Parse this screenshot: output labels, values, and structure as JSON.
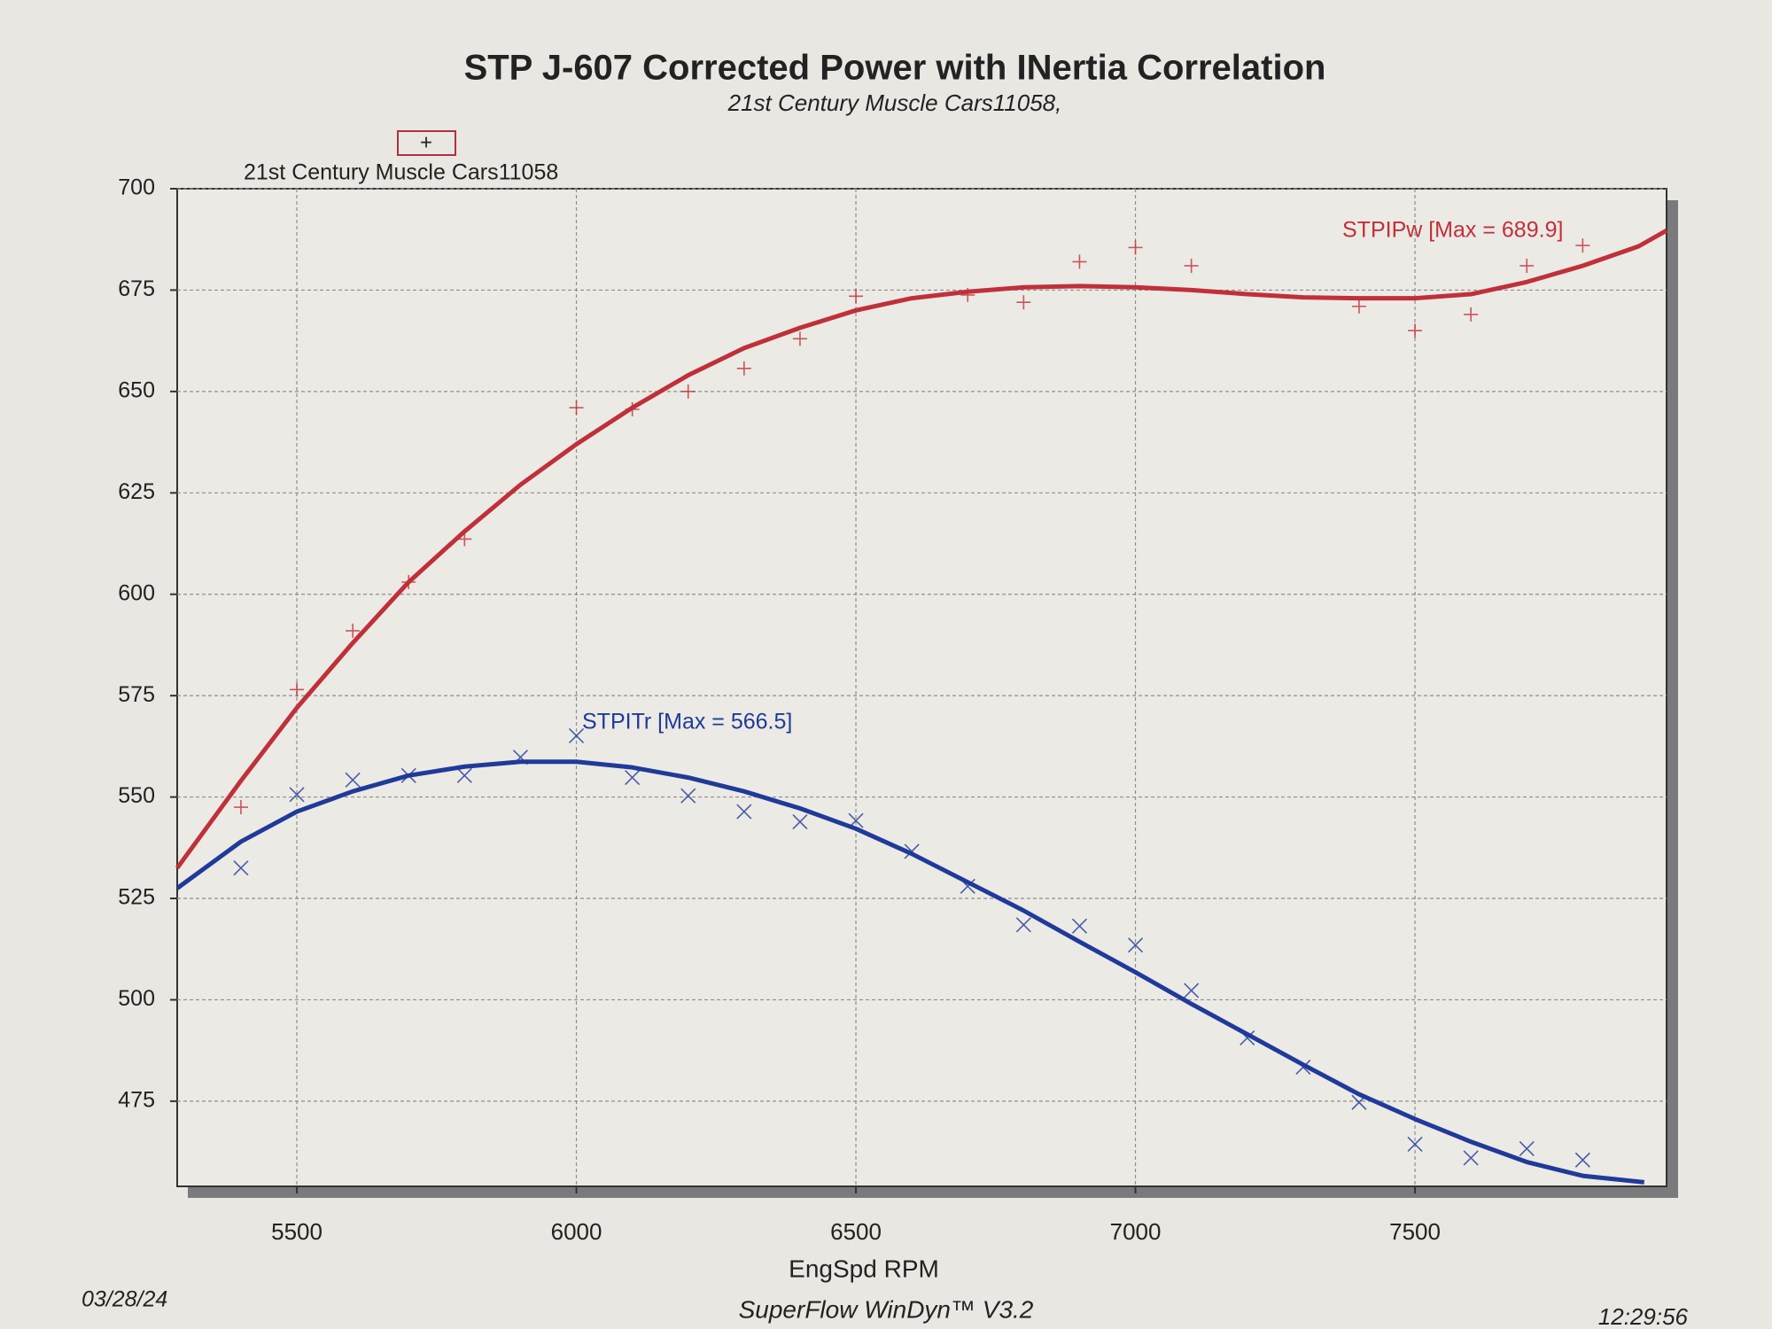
{
  "chart_data": {
    "type": "line",
    "title": "STP J-607 Corrected Power with INertia Correlation",
    "subtitle": "21st Century Muscle Cars11058,",
    "legend_label": "21st Century Muscle Cars11058",
    "legend_symbol": "+",
    "x_label": "EngSpd RPM",
    "date": "03/28/24",
    "footer": "SuperFlow WinDyn™ V3.2",
    "time": "12:29:56",
    "xlim": [
      5286,
      7950
    ],
    "xticks": [
      5500,
      6000,
      6500,
      7000,
      7500
    ],
    "ylim": [
      454,
      700
    ],
    "yticks": [
      475,
      500,
      525,
      550,
      575,
      600,
      625,
      650,
      675,
      700
    ],
    "grid": true,
    "series": [
      {
        "name": "STPIPw [Max = 689.9]",
        "color": "#c0303a",
        "marker": "plus",
        "x": [
          5286,
          5400,
          5500,
          5600,
          5700,
          5800,
          5900,
          6000,
          6100,
          6200,
          6300,
          6400,
          6500,
          6600,
          6700,
          6800,
          6900,
          7000,
          7100,
          7200,
          7300,
          7400,
          7500,
          7600,
          7700,
          7800,
          7900,
          7950
        ],
        "values": [
          532.5,
          554,
          572,
          588,
          603,
          615.5,
          627,
          637,
          646,
          654,
          660.7,
          665.7,
          670,
          673,
          674.6,
          675.7,
          676,
          675.7,
          675,
          674,
          673.2,
          673,
          673,
          674,
          677,
          681,
          685.8,
          689.7
        ],
        "marker_x": [
          5400,
          5500,
          5600,
          5700,
          5800,
          6000,
          6100,
          6200,
          6300,
          6400,
          6500,
          6700,
          6800,
          6900,
          7000,
          7100,
          7400,
          7500,
          7600,
          7700,
          7800
        ],
        "marker_values": [
          547.5,
          576.5,
          591,
          603,
          613.6,
          646,
          645.6,
          650,
          655.7,
          663,
          673.5,
          673.8,
          672,
          682,
          685.5,
          681,
          671,
          665,
          669,
          681,
          686
        ]
      },
      {
        "name": "STPITr [Max = 566.5]",
        "color": "#1f3a9a",
        "marker": "cross",
        "x": [
          5286,
          5400,
          5500,
          5600,
          5700,
          5800,
          5900,
          6000,
          6100,
          6200,
          6300,
          6400,
          6500,
          6600,
          6700,
          6800,
          6900,
          7000,
          7100,
          7200,
          7300,
          7400,
          7500,
          7600,
          7700,
          7800,
          7910
        ],
        "values": [
          527.5,
          539,
          546.4,
          551.4,
          555.3,
          557.5,
          558.7,
          558.7,
          557.3,
          554.8,
          551.4,
          547.2,
          542.2,
          536,
          529,
          522,
          514.3,
          506.8,
          499,
          491.5,
          484,
          476.7,
          470.6,
          465,
          460,
          456.6,
          455
        ],
        "marker_x": [
          5400,
          5500,
          5600,
          5700,
          5800,
          5900,
          6000,
          6100,
          6200,
          6300,
          6400,
          6500,
          6600,
          6700,
          6800,
          6900,
          7000,
          7100,
          7200,
          7300,
          7400,
          7500,
          7600,
          7700,
          7800
        ],
        "marker_values": [
          532.5,
          550.6,
          554.2,
          555.3,
          555.3,
          559.8,
          565.1,
          554.8,
          550.3,
          546.4,
          543.9,
          544.2,
          536.6,
          528,
          518.5,
          518.2,
          513.5,
          502.3,
          490.6,
          483.4,
          474.7,
          464.4,
          461,
          463.3,
          460.5
        ]
      }
    ]
  }
}
